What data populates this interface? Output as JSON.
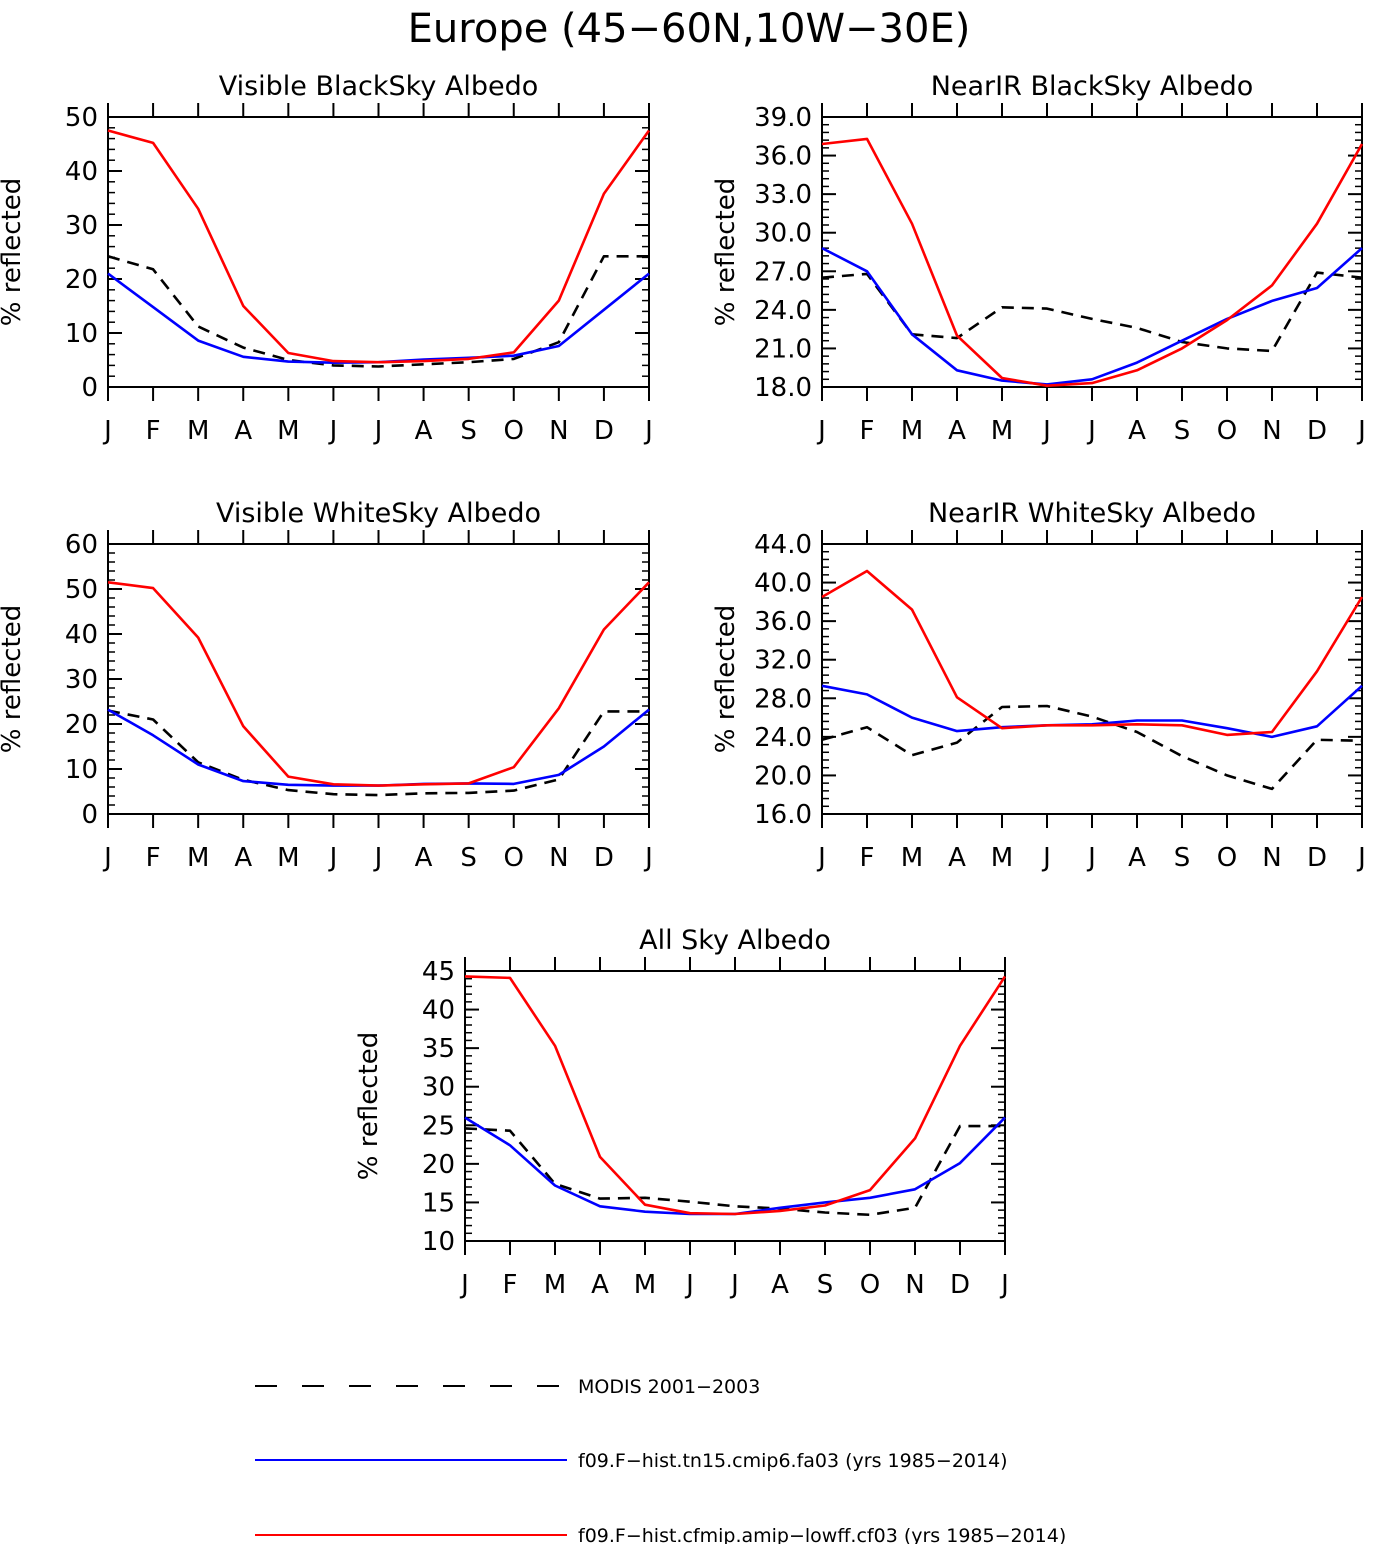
{
  "title": "Europe (45−60N,10W−30E)",
  "months": [
    "J",
    "F",
    "M",
    "A",
    "M",
    "J",
    "J",
    "A",
    "S",
    "O",
    "N",
    "D",
    "J"
  ],
  "series_styles": [
    {
      "key": "modis",
      "color": "#000000",
      "dash": true
    },
    {
      "key": "fa03",
      "color": "#0000ff",
      "dash": false
    },
    {
      "key": "cf03",
      "color": "#ff0000",
      "dash": false
    }
  ],
  "legend": [
    {
      "key": "modis",
      "label": "MODIS 2001−2003"
    },
    {
      "key": "fa03",
      "label": "f09.F−hist.tn15.cmip6.fa03 (yrs 1985−2014)"
    },
    {
      "key": "cf03",
      "label": "f09.F−hist.cfmip.amip−lowff.cf03 (yrs 1985−2014)"
    }
  ],
  "chart_data": [
    {
      "type": "line",
      "title": "Visible BlackSky Albedo",
      "ylabel": "% reflected",
      "categories": [
        "J",
        "F",
        "M",
        "A",
        "M",
        "J",
        "J",
        "A",
        "S",
        "O",
        "N",
        "D",
        "J"
      ],
      "ylim": [
        0,
        50
      ],
      "yticks": [
        0,
        10,
        20,
        30,
        40,
        50
      ],
      "ytick_labels": [
        "0",
        "10",
        "20",
        "30",
        "40",
        "50"
      ],
      "series": [
        {
          "key": "modis",
          "values": [
            24.2,
            21.8,
            11.2,
            7.3,
            5.0,
            4.0,
            3.8,
            4.2,
            4.6,
            5.2,
            8.3,
            24.2,
            24.2
          ]
        },
        {
          "key": "fa03",
          "values": [
            21.0,
            14.8,
            8.6,
            5.6,
            4.7,
            4.5,
            4.6,
            5.1,
            5.4,
            5.8,
            7.6,
            14.3,
            21.0
          ]
        },
        {
          "key": "cf03",
          "values": [
            47.5,
            45.2,
            33.0,
            15.0,
            6.3,
            4.8,
            4.6,
            4.8,
            5.2,
            6.4,
            16.0,
            35.8,
            47.5
          ]
        }
      ]
    },
    {
      "type": "line",
      "title": "NearIR BlackSky Albedo",
      "ylabel": "% reflected",
      "categories": [
        "J",
        "F",
        "M",
        "A",
        "M",
        "J",
        "J",
        "A",
        "S",
        "O",
        "N",
        "D",
        "J"
      ],
      "ylim": [
        18,
        39
      ],
      "yticks": [
        18,
        21,
        24,
        27,
        30,
        33,
        36,
        39
      ],
      "ytick_labels": [
        "18.0",
        "21.0",
        "24.0",
        "27.0",
        "30.0",
        "33.0",
        "36.0",
        "39.0"
      ],
      "series": [
        {
          "key": "modis",
          "values": [
            26.5,
            26.8,
            22.1,
            21.8,
            24.2,
            24.1,
            23.3,
            22.6,
            21.5,
            21.0,
            20.8,
            26.9,
            26.5
          ]
        },
        {
          "key": "fa03",
          "values": [
            28.8,
            27.0,
            22.1,
            19.3,
            18.5,
            18.2,
            18.6,
            19.9,
            21.6,
            23.3,
            24.7,
            25.7,
            28.8
          ]
        },
        {
          "key": "cf03",
          "values": [
            36.9,
            37.3,
            30.7,
            22.0,
            18.7,
            18.1,
            18.3,
            19.3,
            21.0,
            23.2,
            25.9,
            30.7,
            36.9
          ]
        }
      ]
    },
    {
      "type": "line",
      "title": "Visible WhiteSky Albedo",
      "ylabel": "% reflected",
      "categories": [
        "J",
        "F",
        "M",
        "A",
        "M",
        "J",
        "J",
        "A",
        "S",
        "O",
        "N",
        "D",
        "J"
      ],
      "ylim": [
        0,
        60
      ],
      "yticks": [
        0,
        10,
        20,
        30,
        40,
        50,
        60
      ],
      "ytick_labels": [
        "0",
        "10",
        "20",
        "30",
        "40",
        "50",
        "60"
      ],
      "series": [
        {
          "key": "modis",
          "values": [
            23.0,
            21.0,
            11.5,
            7.6,
            5.3,
            4.4,
            4.2,
            4.6,
            4.7,
            5.2,
            7.7,
            22.8,
            22.8
          ]
        },
        {
          "key": "fa03",
          "values": [
            23.2,
            17.5,
            11.0,
            7.3,
            6.5,
            6.3,
            6.3,
            6.7,
            6.8,
            6.7,
            8.7,
            15.0,
            23.2
          ]
        },
        {
          "key": "cf03",
          "values": [
            51.5,
            50.2,
            39.2,
            19.5,
            8.3,
            6.6,
            6.3,
            6.6,
            6.8,
            10.4,
            23.5,
            41.0,
            51.5
          ]
        }
      ]
    },
    {
      "type": "line",
      "title": "NearIR WhiteSky Albedo",
      "ylabel": "% reflected",
      "categories": [
        "J",
        "F",
        "M",
        "A",
        "M",
        "J",
        "J",
        "A",
        "S",
        "O",
        "N",
        "D",
        "J"
      ],
      "ylim": [
        16,
        44
      ],
      "yticks": [
        16,
        20,
        24,
        28,
        32,
        36,
        40,
        44
      ],
      "ytick_labels": [
        "16.0",
        "20.0",
        "24.0",
        "28.0",
        "32.0",
        "36.0",
        "40.0",
        "44.0"
      ],
      "series": [
        {
          "key": "modis",
          "values": [
            23.7,
            25.0,
            22.1,
            23.4,
            27.1,
            27.2,
            26.1,
            24.5,
            22.0,
            20.0,
            18.6,
            23.7,
            23.6
          ]
        },
        {
          "key": "fa03",
          "values": [
            29.3,
            28.4,
            26.0,
            24.6,
            25.0,
            25.2,
            25.3,
            25.7,
            25.7,
            24.9,
            24.0,
            25.1,
            29.3
          ]
        },
        {
          "key": "cf03",
          "values": [
            38.5,
            41.2,
            37.2,
            28.1,
            24.9,
            25.2,
            25.2,
            25.3,
            25.2,
            24.2,
            24.5,
            30.8,
            38.5
          ]
        }
      ]
    },
    {
      "type": "line",
      "title": "All Sky Albedo",
      "ylabel": "% reflected",
      "categories": [
        "J",
        "F",
        "M",
        "A",
        "M",
        "J",
        "J",
        "A",
        "S",
        "O",
        "N",
        "D",
        "J"
      ],
      "ylim": [
        10,
        45
      ],
      "yticks": [
        10,
        15,
        20,
        25,
        30,
        35,
        40,
        45
      ],
      "ytick_labels": [
        "10",
        "15",
        "20",
        "25",
        "30",
        "35",
        "40",
        "45"
      ],
      "series": [
        {
          "key": "modis",
          "values": [
            24.6,
            24.3,
            17.4,
            15.5,
            15.6,
            15.1,
            14.5,
            14.2,
            13.7,
            13.4,
            14.3,
            24.9,
            24.9
          ]
        },
        {
          "key": "fa03",
          "values": [
            26.0,
            22.4,
            17.2,
            14.5,
            13.8,
            13.5,
            13.5,
            14.3,
            15.0,
            15.6,
            16.7,
            20.1,
            26.0
          ]
        },
        {
          "key": "cf03",
          "values": [
            44.3,
            44.1,
            35.3,
            20.9,
            14.7,
            13.6,
            13.5,
            13.9,
            14.6,
            16.6,
            23.3,
            35.3,
            44.3
          ]
        }
      ]
    }
  ]
}
